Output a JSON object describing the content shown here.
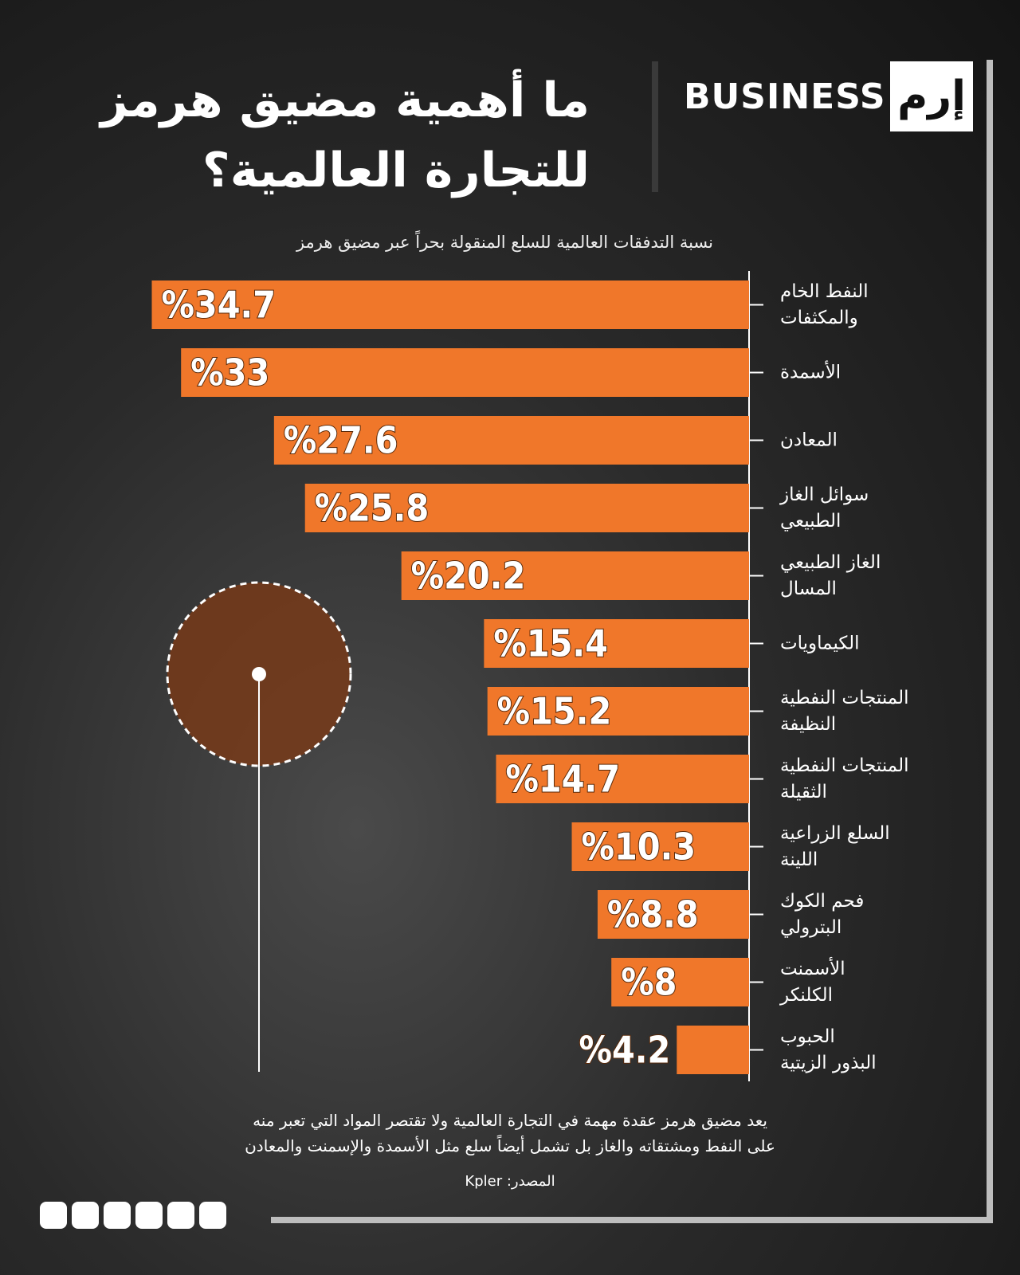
{
  "header": {
    "brand": "BUSINESS",
    "logo": "إرم",
    "title": "ما أهمية مضيق هرمز\nللتجارة العالمية؟"
  },
  "chart_data": {
    "type": "bar",
    "orientation": "horizontal",
    "subtitle": "نسبة التدفقات العالمية للسلع المنقولة بحراً عبر مضيق هرمز",
    "categories": [
      "النفط الخام\nوالمكثفات",
      "الأسمدة",
      "المعادن",
      "سوائل الغاز\nالطبيعي",
      "الغاز الطبيعي\nالمسال",
      "الكيماويات",
      "المنتجات النفطية\nالنظيفة",
      "المنتجات النفطية\nالثقيلة",
      "السلع الزراعية\nاللينة",
      "فحم الكوك\nالبترولي",
      "الأسمنت\nالكلنكر",
      "الحبوب\nالبذور الزيتية"
    ],
    "values": [
      34.7,
      33,
      27.6,
      25.8,
      20.2,
      15.4,
      15.2,
      14.7,
      10.3,
      8.8,
      8,
      4.2
    ],
    "value_labels": [
      "%34.7",
      "%33",
      "%27.6",
      "%25.8",
      "%20.2",
      "%15.4",
      "%15.2",
      "%14.7",
      "%10.3",
      "%8.8",
      "%8",
      "%4.2"
    ],
    "color": "#f0772a"
  },
  "footer": {
    "note": "يعد مضيق هرمز عقدة مهمة في التجارة العالمية ولا تقتصر المواد التي تعبر منه\nعلى النفط ومشتقاته والغاز بل تشمل أيضاً سلع مثل الأسمدة والإسمنت والمعادن",
    "source": "المصدر: Kpler"
  }
}
